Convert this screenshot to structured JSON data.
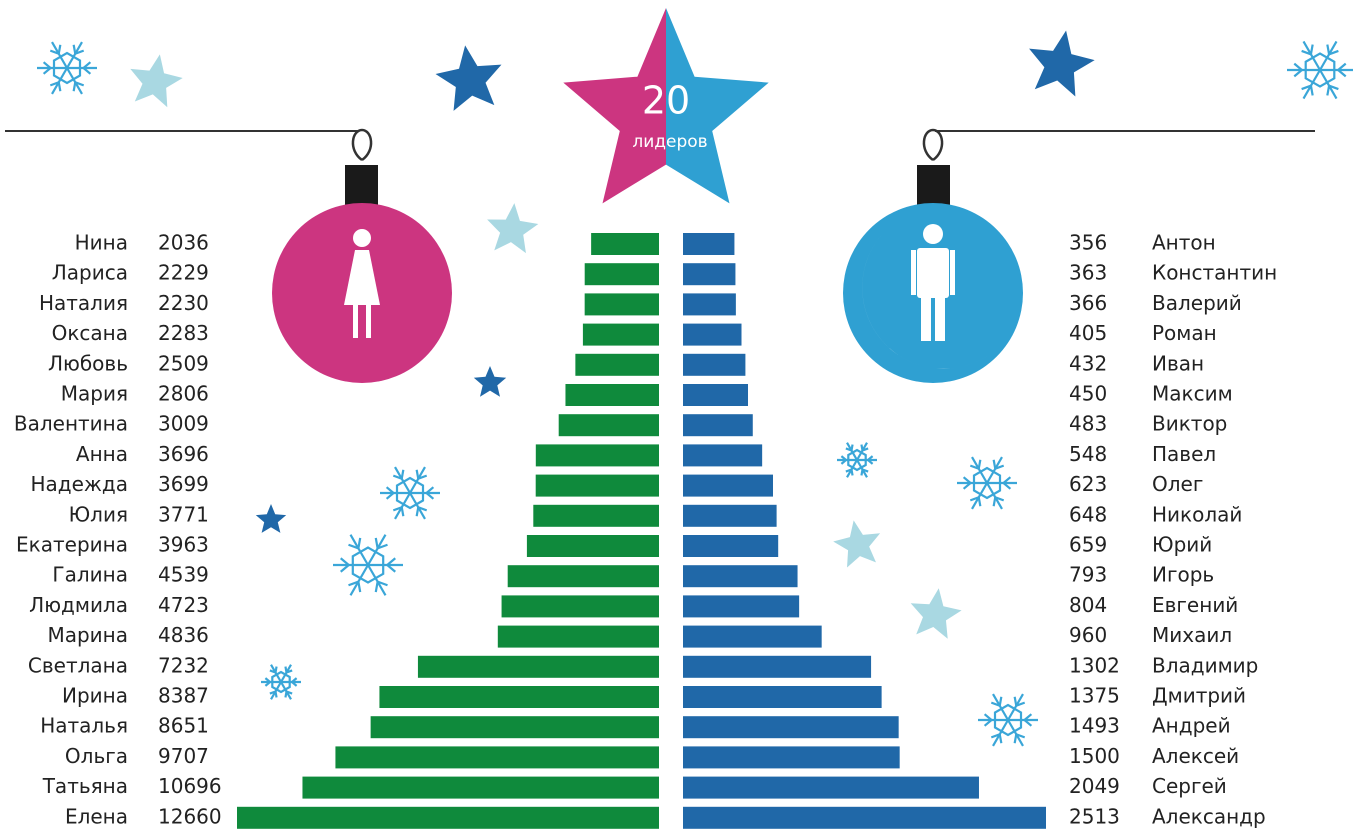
{
  "chart_data": {
    "type": "bar",
    "title": "20",
    "subtitle": "лидеров",
    "series": [
      {
        "color": "#0f8a3c",
        "categories": [
          "Нина",
          "Лариса",
          "Наталия",
          "Оксана",
          "Любовь",
          "Мария",
          "Валентина",
          "Анна",
          "Надежда",
          "Юлия",
          "Екатерина",
          "Галина",
          "Людмила",
          "Марина",
          "Светлана",
          "Ирина",
          "Наталья",
          "Ольга",
          "Татьяна",
          "Елена"
        ],
        "values": [
          2036,
          2229,
          2230,
          2283,
          2509,
          2806,
          3009,
          3696,
          3699,
          3771,
          3963,
          4539,
          4723,
          4836,
          7232,
          8387,
          8651,
          9707,
          10696,
          12660
        ]
      },
      {
        "color": "#2068a8",
        "categories": [
          "Антон",
          "Константин",
          "Валерий",
          "Роман",
          "Иван",
          "Максим",
          "Виктор",
          "Павел",
          "Олег",
          "Николай",
          "Юрий",
          "Игорь",
          "Евгений",
          "Михаил",
          "Владимир",
          "Дмитрий",
          "Андрей",
          "Алексей",
          "Сергей",
          "Александр"
        ],
        "values": [
          356,
          363,
          366,
          405,
          432,
          450,
          483,
          548,
          623,
          648,
          659,
          793,
          804,
          960,
          1302,
          1375,
          1493,
          1500,
          2049,
          2513
        ]
      }
    ]
  }
}
